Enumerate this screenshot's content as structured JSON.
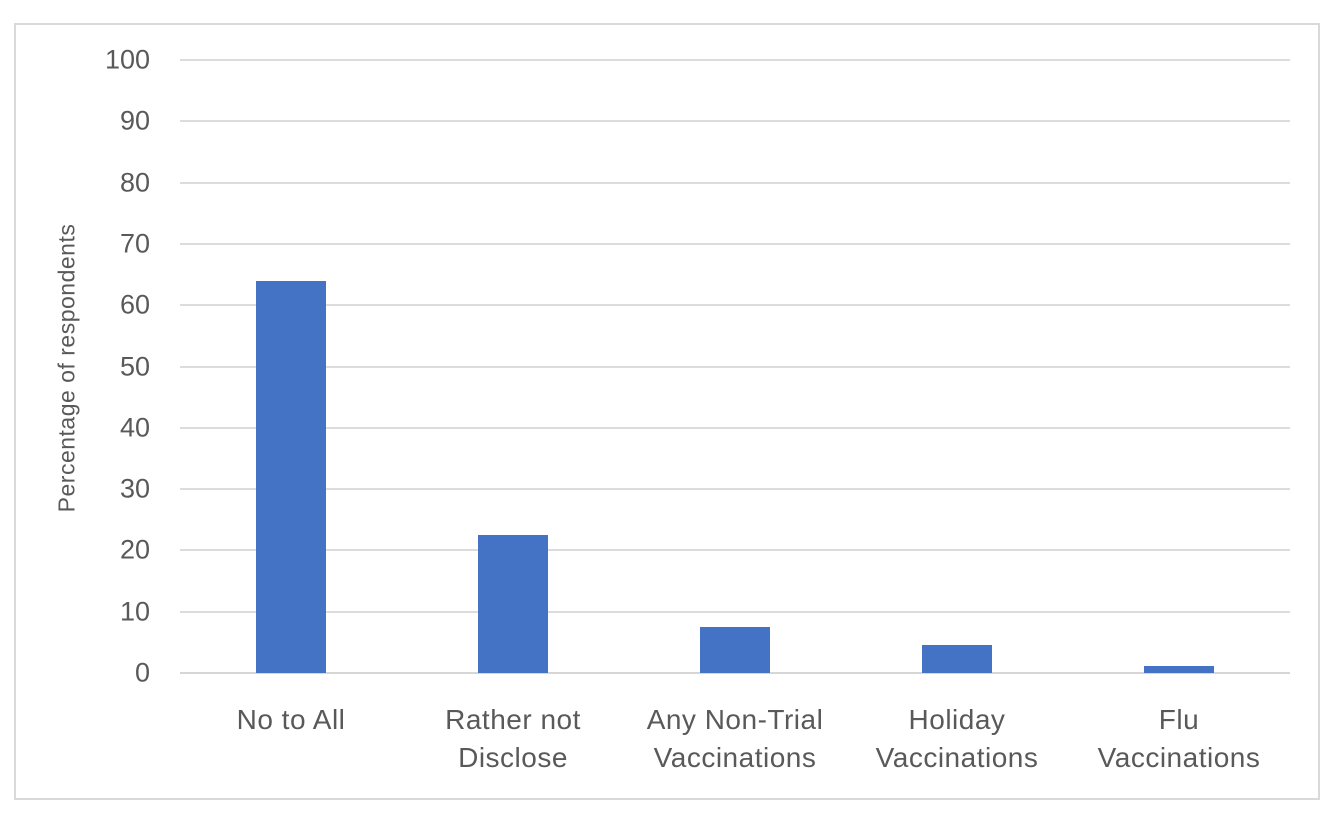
{
  "chart_data": {
    "type": "bar",
    "title": "",
    "categories": [
      "No to All",
      "Rather not Disclose",
      "Any Non-Trial Vaccinations",
      "Holiday Vaccinations",
      "Flu Vaccinations"
    ],
    "category_lines": [
      [
        "No to All"
      ],
      [
        "Rather not",
        "Disclose"
      ],
      [
        "Any Non-Trial",
        "Vaccinations"
      ],
      [
        "Holiday",
        "Vaccinations"
      ],
      [
        "Flu",
        "Vaccinations"
      ]
    ],
    "values": [
      64,
      22.5,
      7.5,
      4.5,
      1.2
    ],
    "xlabel": "",
    "ylabel": "Percentage of respondents",
    "ylim": [
      0,
      100
    ],
    "yticks": [
      0,
      10,
      20,
      30,
      40,
      50,
      60,
      70,
      80,
      90,
      100
    ],
    "grid": true,
    "legend_position": "none",
    "colors": {
      "bar": "#4472C4",
      "gridline": "#DCDCDC",
      "axis_line": "#D6D6D6",
      "text": "#595959",
      "frame_border": "#D9D9D9",
      "background": "#FFFFFF"
    }
  }
}
